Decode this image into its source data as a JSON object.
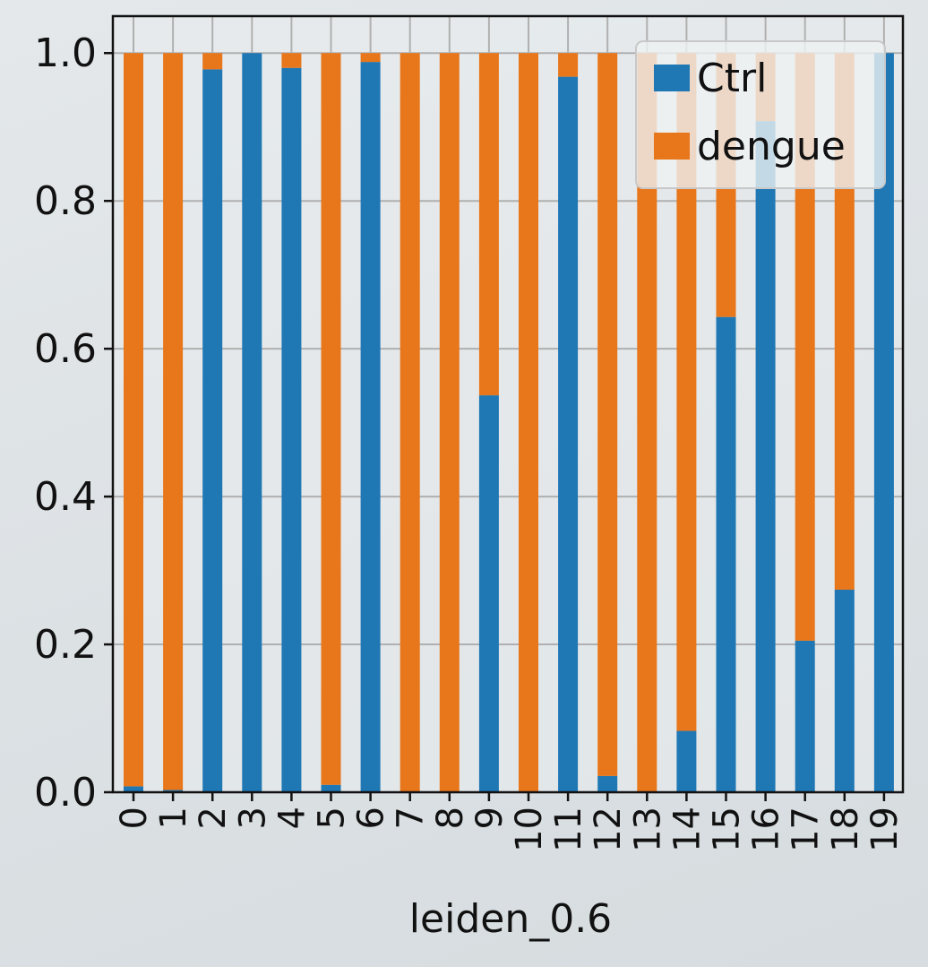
{
  "chart_data": {
    "type": "bar",
    "stacked": true,
    "title": "",
    "xlabel": "leiden_0.6",
    "ylabel": "",
    "ylim": [
      0,
      1.05
    ],
    "yticks": [
      0.0,
      0.2,
      0.4,
      0.6,
      0.8,
      1.0
    ],
    "ytick_labels": [
      "0.0",
      "0.2",
      "0.4",
      "0.6",
      "0.8",
      "1.0"
    ],
    "grid": true,
    "legend_position": "top-right",
    "categories": [
      "0",
      "1",
      "2",
      "3",
      "4",
      "5",
      "6",
      "7",
      "8",
      "9",
      "10",
      "11",
      "12",
      "13",
      "14",
      "15",
      "16",
      "17",
      "18",
      "19"
    ],
    "series": [
      {
        "name": "Ctrl",
        "color": "#1f77b4",
        "values": [
          0.008,
          0.003,
          0.978,
          1.0,
          0.98,
          0.01,
          0.988,
          0.0,
          0.0,
          0.537,
          0.0,
          0.968,
          0.022,
          0.0,
          0.083,
          0.643,
          0.908,
          0.205,
          0.274,
          1.0
        ]
      },
      {
        "name": "dengue",
        "color": "#e8761a",
        "values": [
          0.992,
          0.997,
          0.022,
          0.0,
          0.02,
          0.99,
          0.012,
          1.0,
          1.0,
          0.463,
          1.0,
          0.032,
          0.978,
          1.0,
          0.917,
          0.357,
          0.092,
          0.795,
          0.726,
          0.0
        ]
      }
    ]
  }
}
